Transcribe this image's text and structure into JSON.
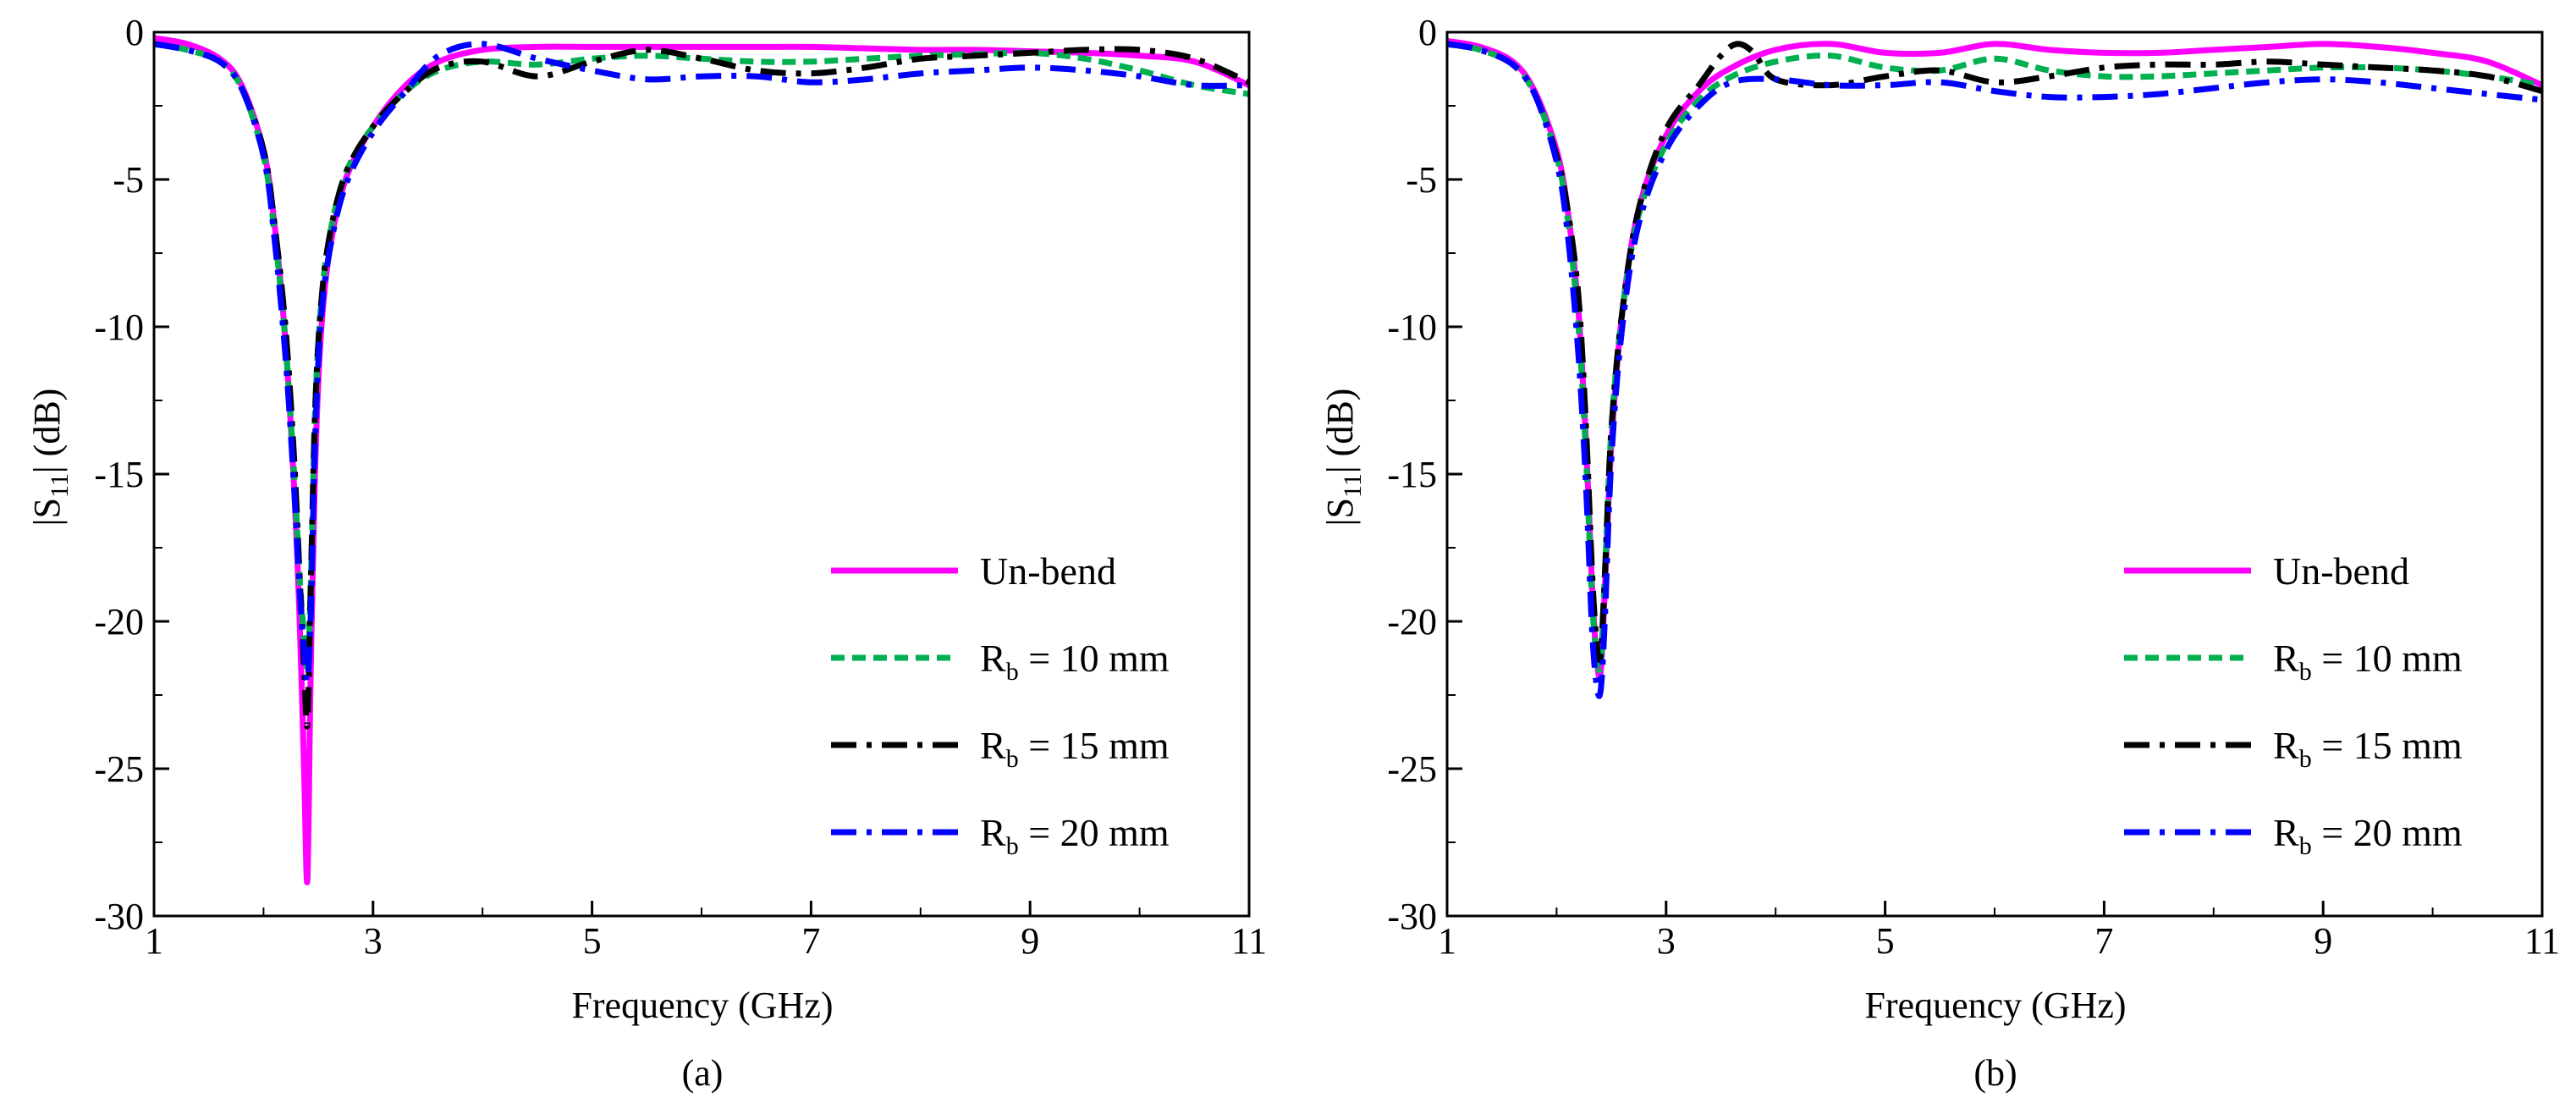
{
  "figure": {
    "captions": [
      "(a)",
      "(b)"
    ]
  },
  "chart_data": [
    {
      "type": "line",
      "panel": "(a)",
      "xlabel": "Frequency (GHz)",
      "ylabel_main": "|S",
      "ylabel_sub": "11",
      "ylabel_tail": "| (dB)",
      "xlim": [
        1,
        11
      ],
      "ylim": [
        -30,
        0
      ],
      "xticks": [
        1,
        3,
        5,
        7,
        9,
        11
      ],
      "yticks": [
        0,
        -5,
        -10,
        -15,
        -20,
        -25,
        -30
      ],
      "legend_position": "bottom-right",
      "series": [
        {
          "name": "Un-bend",
          "label_main": "Un-bend",
          "label_sub": "",
          "label_tail": "",
          "color": "#ff00ff",
          "style": "solid",
          "x": [
            1.0,
            1.3,
            1.6,
            1.8,
            2.0,
            2.1,
            2.2,
            2.28,
            2.33,
            2.37,
            2.4,
            2.43,
            2.47,
            2.52,
            2.6,
            2.75,
            3.0,
            3.3,
            3.6,
            4.0,
            4.5,
            5.0,
            5.5,
            6.0,
            6.5,
            7.0,
            7.5,
            8.0,
            8.5,
            9.0,
            9.5,
            10.0,
            10.5,
            11.0
          ],
          "y": [
            -0.2,
            -0.4,
            -0.9,
            -1.8,
            -4.0,
            -6.5,
            -10.5,
            -15.5,
            -20.0,
            -25.0,
            -28.8,
            -22.0,
            -15.0,
            -10.5,
            -7.5,
            -5.0,
            -3.2,
            -1.8,
            -1.0,
            -0.6,
            -0.5,
            -0.5,
            -0.5,
            -0.5,
            -0.5,
            -0.5,
            -0.55,
            -0.6,
            -0.6,
            -0.65,
            -0.7,
            -0.8,
            -1.0,
            -1.8
          ]
        },
        {
          "name": "Rb = 10 mm",
          "label_main": "R",
          "label_sub": "b",
          "label_tail": " = 10 mm",
          "color": "#00b050",
          "style": "dashed",
          "x": [
            1.0,
            1.3,
            1.6,
            1.8,
            2.0,
            2.1,
            2.2,
            2.28,
            2.33,
            2.37,
            2.4,
            2.43,
            2.47,
            2.52,
            2.6,
            2.75,
            3.0,
            3.3,
            3.6,
            4.0,
            4.5,
            5.0,
            5.5,
            6.0,
            6.5,
            7.0,
            7.5,
            8.0,
            8.5,
            9.0,
            9.5,
            10.0,
            10.5,
            11.0
          ],
          "y": [
            -0.4,
            -0.6,
            -1.0,
            -1.9,
            -4.2,
            -6.8,
            -10.5,
            -15.0,
            -18.5,
            -20.5,
            -21.5,
            -19.0,
            -13.0,
            -9.5,
            -7.0,
            -4.8,
            -3.2,
            -2.0,
            -1.3,
            -1.0,
            -1.1,
            -0.9,
            -0.8,
            -0.9,
            -1.0,
            -1.0,
            -0.9,
            -0.8,
            -0.75,
            -0.7,
            -0.9,
            -1.3,
            -1.8,
            -2.1
          ]
        },
        {
          "name": "Rb = 15 mm",
          "label_main": "R",
          "label_sub": "b",
          "label_tail": " = 15 mm",
          "color": "#000000",
          "style": "dashdot",
          "x": [
            1.0,
            1.3,
            1.6,
            1.8,
            2.0,
            2.1,
            2.2,
            2.28,
            2.33,
            2.37,
            2.4,
            2.43,
            2.47,
            2.52,
            2.6,
            2.75,
            3.0,
            3.3,
            3.6,
            4.0,
            4.5,
            5.0,
            5.5,
            6.0,
            6.5,
            7.0,
            7.5,
            8.0,
            8.5,
            9.0,
            9.5,
            10.0,
            10.5,
            11.0
          ],
          "y": [
            -0.4,
            -0.6,
            -1.0,
            -1.9,
            -4.0,
            -6.5,
            -10.0,
            -14.5,
            -18.5,
            -21.5,
            -23.5,
            -19.0,
            -13.0,
            -9.5,
            -7.0,
            -4.8,
            -3.2,
            -2.0,
            -1.2,
            -1.0,
            -1.5,
            -1.0,
            -0.6,
            -0.9,
            -1.3,
            -1.4,
            -1.2,
            -0.9,
            -0.8,
            -0.7,
            -0.6,
            -0.6,
            -0.9,
            -1.7
          ]
        },
        {
          "name": "Rb = 20 mm",
          "label_main": "R",
          "label_sub": "b",
          "label_tail": " = 20 mm",
          "color": "#0000ff",
          "style": "dashdot",
          "x": [
            1.0,
            1.3,
            1.6,
            1.8,
            2.0,
            2.1,
            2.2,
            2.28,
            2.33,
            2.37,
            2.4,
            2.43,
            2.47,
            2.52,
            2.6,
            2.75,
            3.0,
            3.3,
            3.6,
            4.0,
            4.5,
            5.0,
            5.5,
            6.0,
            6.5,
            7.0,
            7.5,
            8.0,
            8.5,
            9.0,
            9.5,
            10.0,
            10.5,
            11.0
          ],
          "y": [
            -0.4,
            -0.6,
            -1.0,
            -1.9,
            -4.2,
            -7.0,
            -11.0,
            -15.5,
            -19.0,
            -21.0,
            -22.0,
            -20.0,
            -14.0,
            -10.0,
            -7.5,
            -5.2,
            -3.4,
            -2.0,
            -0.8,
            -0.4,
            -0.9,
            -1.3,
            -1.6,
            -1.5,
            -1.5,
            -1.7,
            -1.6,
            -1.4,
            -1.3,
            -1.2,
            -1.3,
            -1.5,
            -1.8,
            -1.8
          ]
        }
      ]
    },
    {
      "type": "line",
      "panel": "(b)",
      "xlabel": "Frequency (GHz)",
      "ylabel_main": "|S",
      "ylabel_sub": "11",
      "ylabel_tail": "| (dB)",
      "xlim": [
        1,
        11
      ],
      "ylim": [
        -30,
        0
      ],
      "xticks": [
        1,
        3,
        5,
        7,
        9,
        11
      ],
      "yticks": [
        0,
        -5,
        -10,
        -15,
        -20,
        -25,
        -30
      ],
      "legend_position": "bottom-right",
      "series": [
        {
          "name": "Un-bend",
          "label_main": "Un-bend",
          "label_sub": "",
          "label_tail": "",
          "color": "#ff00ff",
          "style": "solid",
          "x": [
            1.0,
            1.3,
            1.6,
            1.8,
            2.0,
            2.1,
            2.2,
            2.27,
            2.32,
            2.36,
            2.4,
            2.44,
            2.5,
            2.6,
            2.75,
            3.0,
            3.3,
            3.6,
            4.0,
            4.5,
            5.0,
            5.5,
            6.0,
            6.5,
            7.0,
            7.5,
            8.0,
            8.5,
            9.0,
            9.5,
            10.0,
            10.5,
            11.0
          ],
          "y": [
            -0.3,
            -0.5,
            -1.0,
            -2.0,
            -4.0,
            -6.0,
            -9.5,
            -14.0,
            -18.5,
            -21.0,
            -21.8,
            -19.0,
            -14.0,
            -9.5,
            -6.0,
            -3.5,
            -2.0,
            -1.2,
            -0.6,
            -0.4,
            -0.7,
            -0.7,
            -0.4,
            -0.6,
            -0.7,
            -0.7,
            -0.6,
            -0.5,
            -0.4,
            -0.5,
            -0.7,
            -1.0,
            -1.8
          ]
        },
        {
          "name": "Rb = 10 mm",
          "label_main": "R",
          "label_sub": "b",
          "label_tail": " = 10 mm",
          "color": "#00b050",
          "style": "dashed",
          "x": [
            1.0,
            1.3,
            1.6,
            1.8,
            2.0,
            2.1,
            2.2,
            2.27,
            2.32,
            2.36,
            2.4,
            2.44,
            2.5,
            2.6,
            2.75,
            3.0,
            3.3,
            3.6,
            4.0,
            4.5,
            5.0,
            5.5,
            6.0,
            6.5,
            7.0,
            7.5,
            8.0,
            8.5,
            9.0,
            9.5,
            10.0,
            10.5,
            11.0
          ],
          "y": [
            -0.4,
            -0.6,
            -1.1,
            -2.1,
            -4.2,
            -6.3,
            -10.0,
            -14.5,
            -19.0,
            -21.0,
            -21.5,
            -18.5,
            -13.5,
            -9.5,
            -6.2,
            -3.8,
            -2.3,
            -1.5,
            -1.0,
            -0.8,
            -1.2,
            -1.3,
            -0.9,
            -1.3,
            -1.5,
            -1.5,
            -1.4,
            -1.3,
            -1.2,
            -1.2,
            -1.3,
            -1.5,
            -1.8
          ]
        },
        {
          "name": "Rb = 15 mm",
          "label_main": "R",
          "label_sub": "b",
          "label_tail": " = 15 mm",
          "color": "#000000",
          "style": "dashdot",
          "x": [
            1.0,
            1.3,
            1.6,
            1.8,
            2.0,
            2.1,
            2.2,
            2.27,
            2.32,
            2.36,
            2.4,
            2.44,
            2.5,
            2.6,
            2.75,
            3.0,
            3.3,
            3.5,
            3.65,
            3.8,
            4.0,
            4.5,
            5.0,
            5.5,
            6.0,
            6.5,
            7.0,
            7.5,
            8.0,
            8.5,
            9.0,
            9.5,
            10.0,
            10.5,
            11.0
          ],
          "y": [
            -0.4,
            -0.6,
            -1.1,
            -2.1,
            -4.2,
            -6.0,
            -9.0,
            -13.5,
            -18.0,
            -20.5,
            -21.2,
            -18.5,
            -13.5,
            -9.5,
            -6.0,
            -3.3,
            -1.8,
            -0.8,
            -0.4,
            -0.7,
            -1.6,
            -1.8,
            -1.5,
            -1.3,
            -1.7,
            -1.5,
            -1.2,
            -1.1,
            -1.1,
            -1.0,
            -1.1,
            -1.2,
            -1.3,
            -1.5,
            -2.0
          ]
        },
        {
          "name": "Rb = 20 mm",
          "label_main": "R",
          "label_sub": "b",
          "label_tail": " = 20 mm",
          "color": "#0000ff",
          "style": "dashdot",
          "x": [
            1.0,
            1.3,
            1.6,
            1.8,
            2.0,
            2.1,
            2.2,
            2.27,
            2.32,
            2.36,
            2.4,
            2.44,
            2.5,
            2.6,
            2.75,
            3.0,
            3.3,
            3.6,
            4.0,
            4.5,
            5.0,
            5.5,
            6.0,
            6.5,
            7.0,
            7.5,
            8.0,
            8.5,
            9.0,
            9.5,
            10.0,
            10.5,
            11.0
          ],
          "y": [
            -0.4,
            -0.6,
            -1.1,
            -2.1,
            -4.4,
            -6.8,
            -11.0,
            -15.5,
            -20.0,
            -22.0,
            -22.4,
            -20.0,
            -14.5,
            -10.0,
            -6.5,
            -4.0,
            -2.5,
            -1.7,
            -1.6,
            -1.8,
            -1.8,
            -1.7,
            -2.0,
            -2.2,
            -2.2,
            -2.1,
            -1.9,
            -1.7,
            -1.6,
            -1.7,
            -1.9,
            -2.1,
            -2.3
          ]
        }
      ]
    }
  ]
}
